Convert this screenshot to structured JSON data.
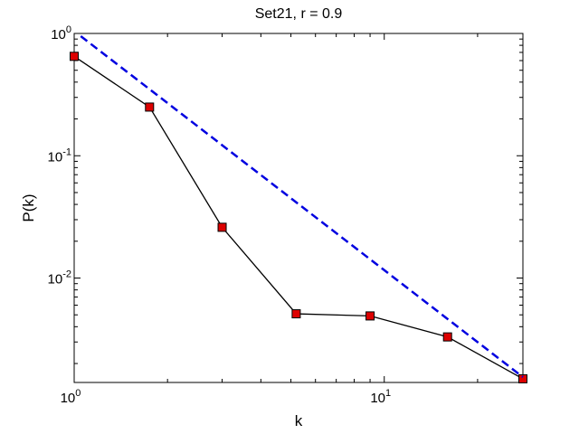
{
  "chart_data": {
    "type": "line",
    "title": "Set21, r = 0.9",
    "xlabel": "k",
    "ylabel": "P(k)",
    "xscale": "log",
    "yscale": "log",
    "xlim": [
      1,
      28
    ],
    "ylim": [
      0.0014,
      1
    ],
    "grid": false,
    "legend": "none",
    "x_ticks": [
      {
        "base": "10",
        "exp": "0",
        "value": 1
      },
      {
        "base": "10",
        "exp": "1",
        "value": 10
      }
    ],
    "y_ticks": [
      {
        "base": "10",
        "exp": "0",
        "value": 1
      },
      {
        "base": "10",
        "exp": "-1",
        "value": 0.1
      },
      {
        "base": "10",
        "exp": "-2",
        "value": 0.01
      }
    ],
    "series": [
      {
        "style": "solid",
        "color": "#000000",
        "marker": "square",
        "marker_color": "#dd0000",
        "x": [
          1.0,
          1.75,
          3.0,
          5.2,
          9.0,
          16.0,
          28.0
        ],
        "y": [
          0.65,
          0.25,
          0.026,
          0.0051,
          0.0049,
          0.0033,
          0.0015
        ]
      },
      {
        "style": "dashed",
        "color": "#0000e0",
        "x": [
          1.05,
          28.0
        ],
        "y": [
          0.95,
          0.00155
        ]
      }
    ]
  }
}
